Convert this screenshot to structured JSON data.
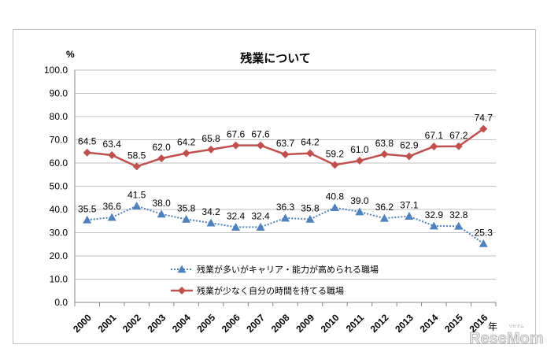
{
  "chart_data": {
    "type": "line",
    "title": "残業について",
    "ylabel": "%",
    "xlabel": "年",
    "ylim": [
      0,
      100
    ],
    "ytick_labels": [
      "0.0",
      "10.0",
      "20.0",
      "30.0",
      "40.0",
      "50.0",
      "60.0",
      "70.0",
      "80.0",
      "90.0",
      "100.0"
    ],
    "categories": [
      "2000",
      "2001",
      "2002",
      "2003",
      "2004",
      "2005",
      "2006",
      "2007",
      "2008",
      "2009",
      "2010",
      "2011",
      "2012",
      "2013",
      "2014",
      "2015",
      "2016"
    ],
    "series": [
      {
        "name": "残業が多いがキャリア・能力が高められる職場",
        "color": "#4f81bd",
        "marker": "triangle",
        "line_style": "dotted",
        "values": [
          35.5,
          36.6,
          41.5,
          38.0,
          35.8,
          34.2,
          32.4,
          32.4,
          36.3,
          35.8,
          40.8,
          39.0,
          36.2,
          37.1,
          32.9,
          32.8,
          25.3
        ],
        "labels": [
          "35.5",
          "36.6",
          "41.5",
          "38.0",
          "35.8",
          "34.2",
          "32.4",
          "32.4",
          "36.3",
          "35.8",
          "40.8",
          "39.0",
          "36.2",
          "37.1",
          "32.9",
          "32.8",
          "25.3"
        ]
      },
      {
        "name": "残業が少なく自分の時間を持てる職場",
        "color": "#c0504d",
        "marker": "diamond",
        "line_style": "solid",
        "values": [
          64.5,
          63.4,
          58.5,
          62.0,
          64.2,
          65.8,
          67.6,
          67.6,
          63.7,
          64.2,
          59.2,
          61.0,
          63.8,
          62.9,
          67.1,
          67.2,
          74.7
        ],
        "labels": [
          "64.5",
          "63.4",
          "58.5",
          "62.0",
          "64.2",
          "65.8",
          "67.6",
          "67.6",
          "63.7",
          "64.2",
          "59.2",
          "61.0",
          "63.8",
          "62.9",
          "67.1",
          "67.2",
          "74.7"
        ]
      }
    ]
  },
  "watermark": {
    "text": "ReseMom",
    "sub": "リセマム"
  }
}
